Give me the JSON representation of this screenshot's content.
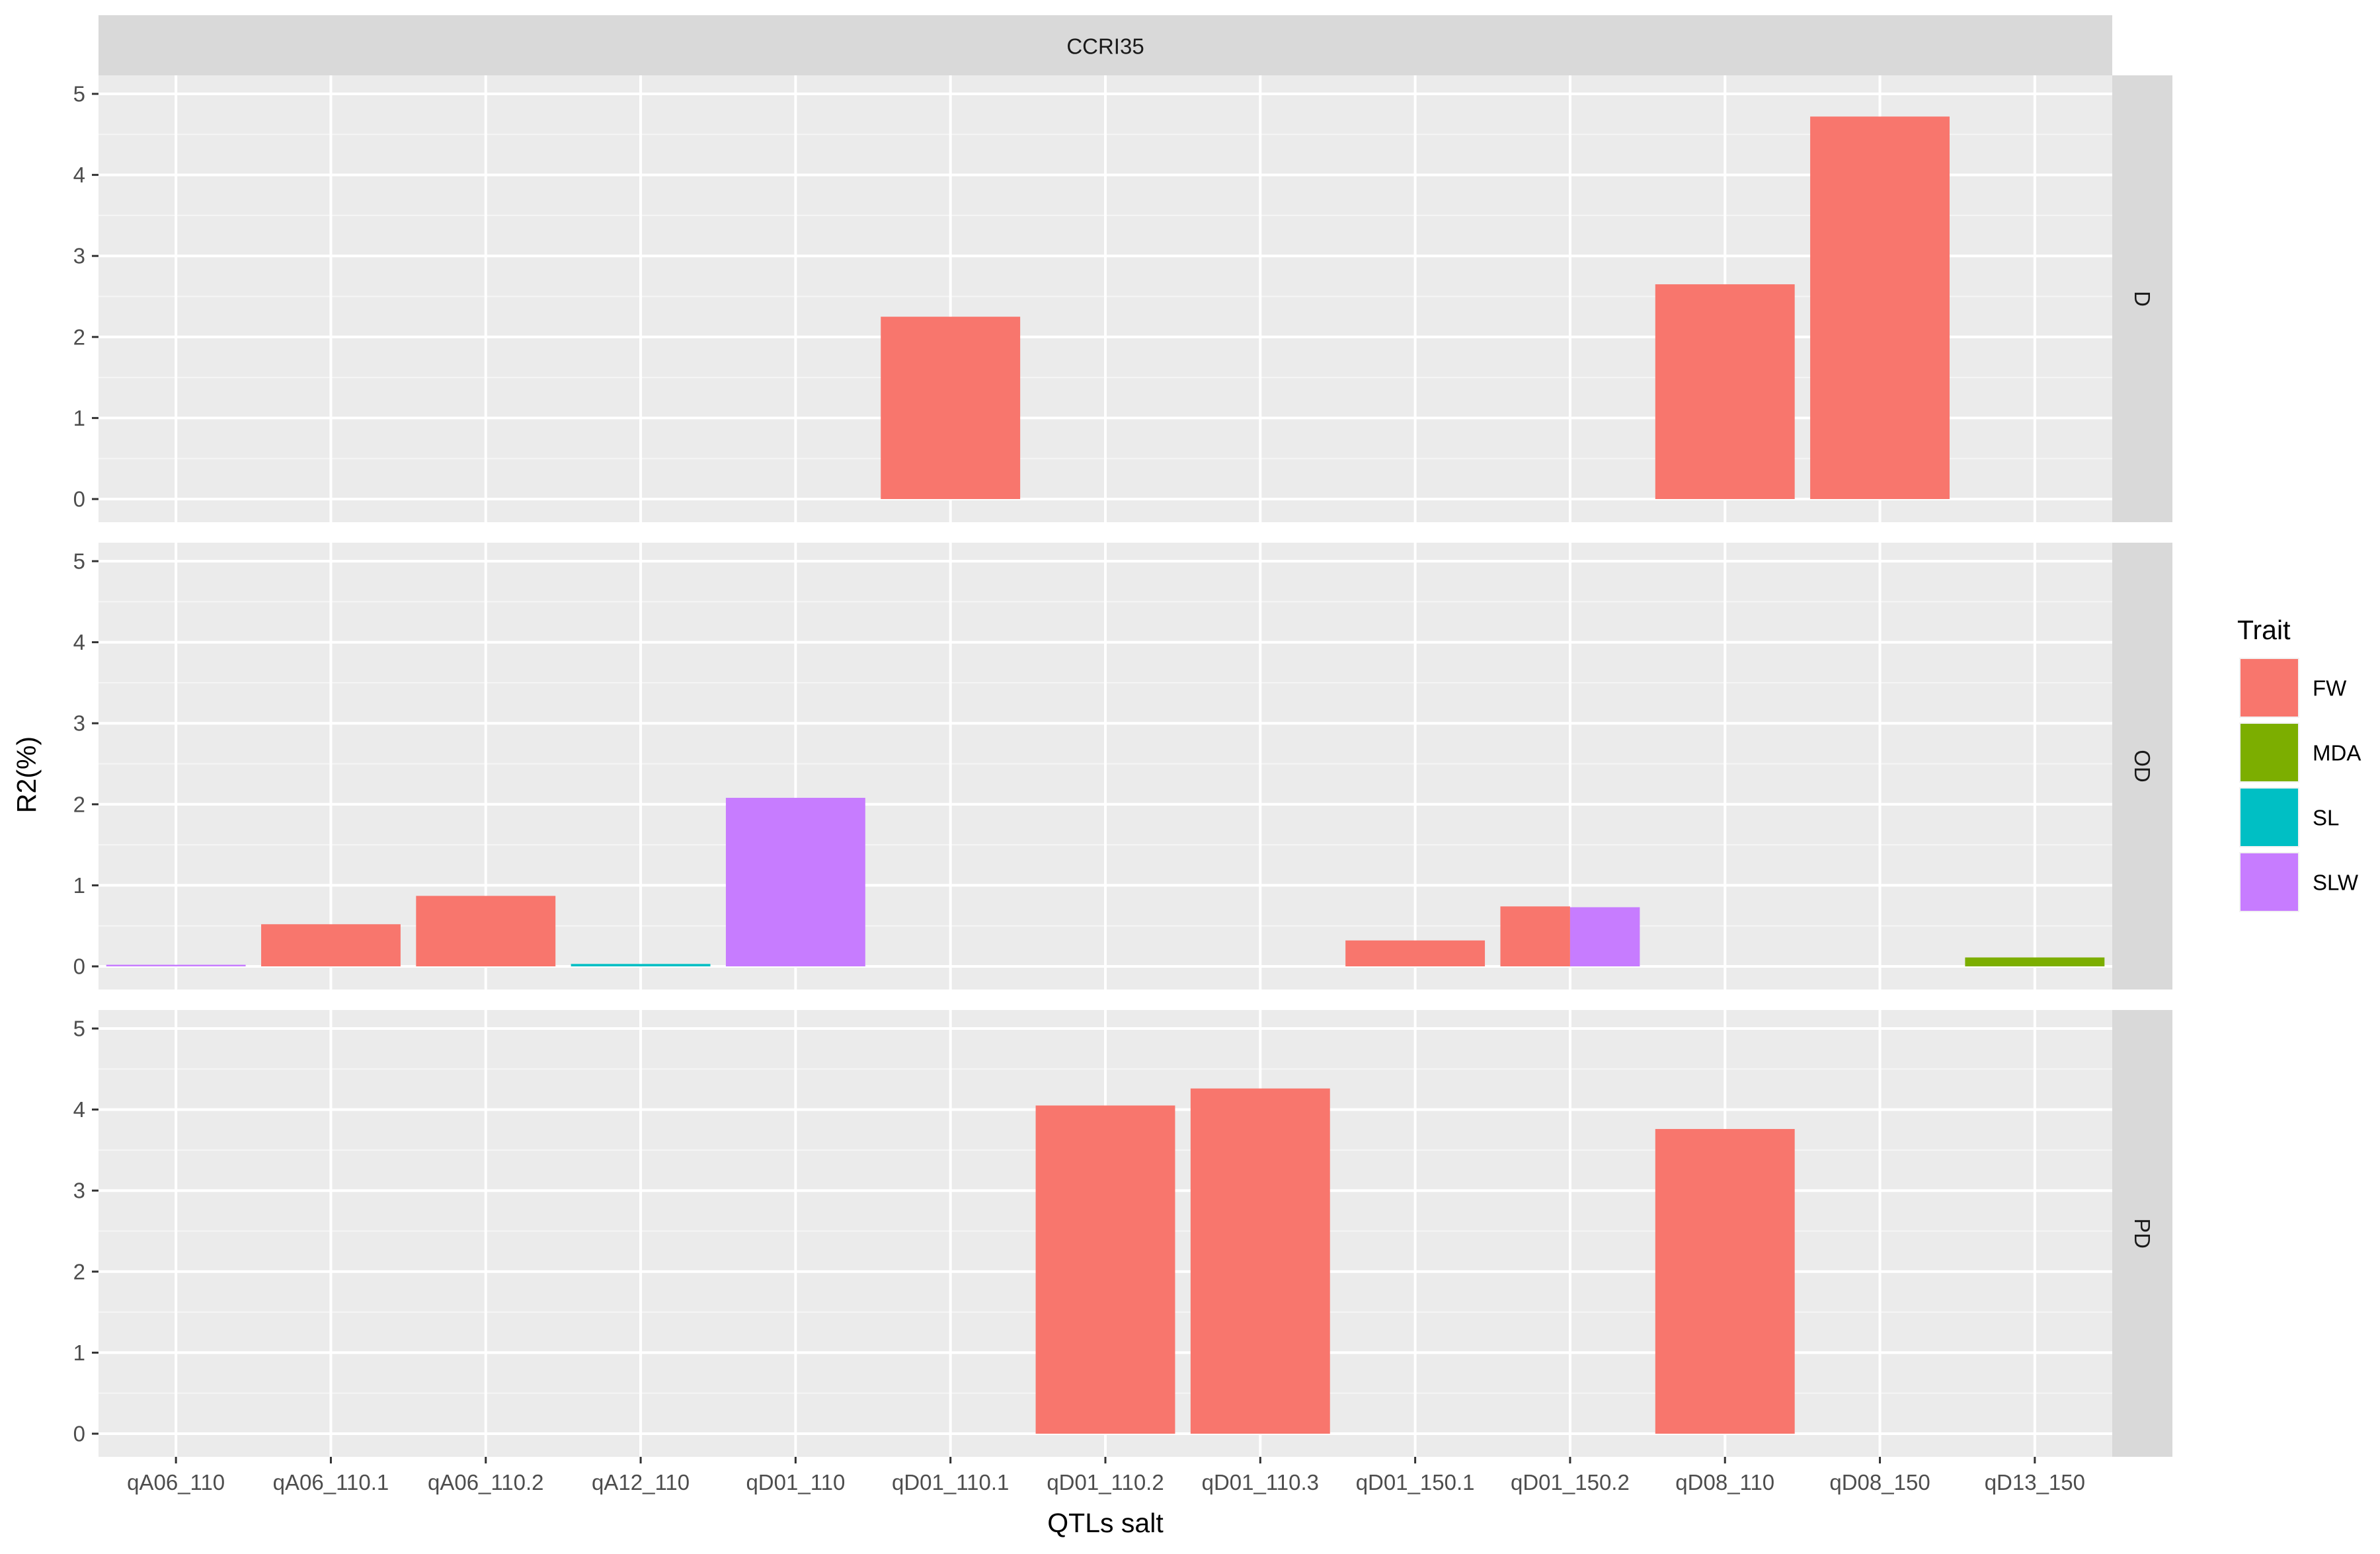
{
  "chart_data": {
    "type": "bar",
    "facet_title": "CCRI35",
    "xlabel": "QTLs salt",
    "ylabel": "R2(%)",
    "ylim": [
      0,
      5.2
    ],
    "yticks": [
      0,
      1,
      2,
      3,
      4,
      5
    ],
    "grid": true,
    "legend_position": "right",
    "legend_title": "Trait",
    "categories": [
      "qA06_110",
      "qA06_110.1",
      "qA06_110.2",
      "qA12_110",
      "qD01_110",
      "qD01_110.1",
      "qD01_110.2",
      "qD01_110.3",
      "qD01_150.1",
      "qD01_150.2",
      "qD08_110",
      "qD08_150",
      "qD13_150"
    ],
    "traits": [
      {
        "name": "FW",
        "color": "#F8766D"
      },
      {
        "name": "MDA",
        "color": "#7CAE00"
      },
      {
        "name": "SL",
        "color": "#00BFC4"
      },
      {
        "name": "SLW",
        "color": "#C77CFF"
      }
    ],
    "panels": [
      {
        "label": "D",
        "bars": [
          {
            "category": "qD01_110.1",
            "trait": "FW",
            "value": 2.25,
            "slot": 0,
            "slots": 1
          },
          {
            "category": "qD08_110",
            "trait": "FW",
            "value": 2.65,
            "slot": 0,
            "slots": 1
          },
          {
            "category": "qD08_150",
            "trait": "FW",
            "value": 4.72,
            "slot": 0,
            "slots": 1
          }
        ]
      },
      {
        "label": "OD",
        "bars": [
          {
            "category": "qA06_110",
            "trait": "SLW",
            "value": 0.02,
            "slot": 0,
            "slots": 1
          },
          {
            "category": "qA06_110.1",
            "trait": "FW",
            "value": 0.52,
            "slot": 0,
            "slots": 1
          },
          {
            "category": "qA06_110.2",
            "trait": "FW",
            "value": 0.87,
            "slot": 0,
            "slots": 1
          },
          {
            "category": "qA12_110",
            "trait": "SL",
            "value": 0.03,
            "slot": 0,
            "slots": 1
          },
          {
            "category": "qD01_110",
            "trait": "SLW",
            "value": 2.08,
            "slot": 0,
            "slots": 1
          },
          {
            "category": "qD01_150.1",
            "trait": "FW",
            "value": 0.32,
            "slot": 0,
            "slots": 1
          },
          {
            "category": "qD01_150.2",
            "trait": "FW",
            "value": 0.74,
            "slot": 0,
            "slots": 2
          },
          {
            "category": "qD01_150.2",
            "trait": "SLW",
            "value": 0.73,
            "slot": 1,
            "slots": 2
          },
          {
            "category": "qD13_150",
            "trait": "MDA",
            "value": 0.11,
            "slot": 0,
            "slots": 1
          }
        ]
      },
      {
        "label": "PD",
        "bars": [
          {
            "category": "qD01_110.2",
            "trait": "FW",
            "value": 4.05,
            "slot": 0,
            "slots": 1
          },
          {
            "category": "qD01_110.3",
            "trait": "FW",
            "value": 4.26,
            "slot": 0,
            "slots": 1
          },
          {
            "category": "qD08_110",
            "trait": "FW",
            "value": 3.76,
            "slot": 0,
            "slots": 1
          }
        ]
      }
    ]
  }
}
